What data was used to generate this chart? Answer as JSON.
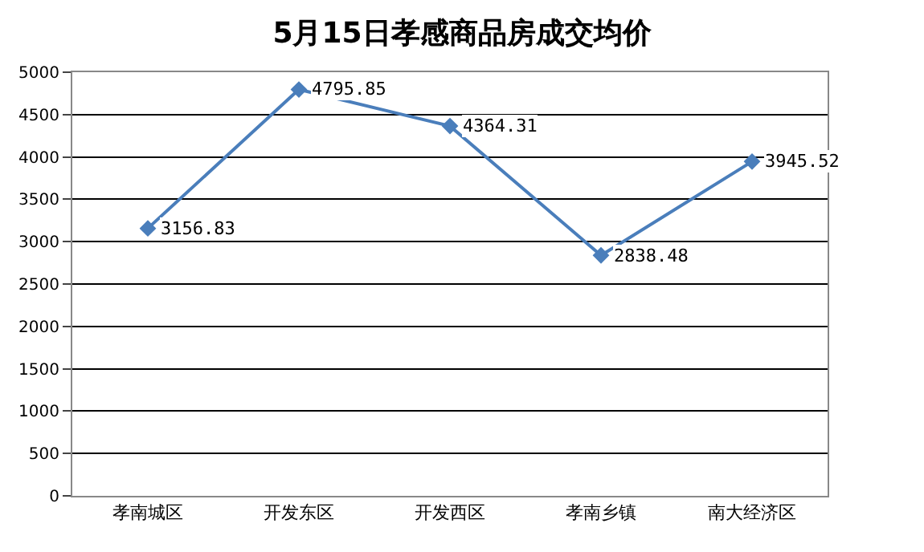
{
  "chart_data": {
    "type": "line",
    "title": "5月15日孝感商品房成交均价",
    "categories": [
      "孝南城区",
      "开发东区",
      "开发西区",
      "孝南乡镇",
      "南大经济区"
    ],
    "series": [
      {
        "color": "#4a7ebb",
        "values": [
          3156.83,
          4795.85,
          4364.31,
          2838.48,
          3945.52
        ]
      }
    ],
    "ylim": [
      0,
      5000
    ],
    "yticks": [
      0,
      500,
      1000,
      1500,
      2000,
      2500,
      3000,
      3500,
      4000,
      4500,
      5000
    ],
    "grid": "y",
    "legend": false,
    "marker": "diamond",
    "line_style": "solid",
    "data_labels": true
  }
}
